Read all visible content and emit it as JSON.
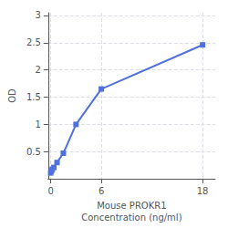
{
  "chart_data": {
    "type": "line",
    "x": [
      0.0,
      0.094,
      0.188,
      0.375,
      0.75,
      1.5,
      3.0,
      6.0,
      18.0
    ],
    "values": [
      0.108,
      0.148,
      0.175,
      0.21,
      0.3,
      0.47,
      1.0,
      1.65,
      2.46
    ],
    "xlabel": "Mouse PROKR1\nConcentration (ng/ml)",
    "ylabel": "OD",
    "xlim": [
      -0.3,
      19.5
    ],
    "xticks": [
      0,
      6,
      18
    ],
    "ylim": [
      0,
      3.05
    ],
    "yticks": [
      0.5,
      1,
      1.5,
      2,
      2.5,
      3
    ],
    "grid": true,
    "marker": "square"
  }
}
